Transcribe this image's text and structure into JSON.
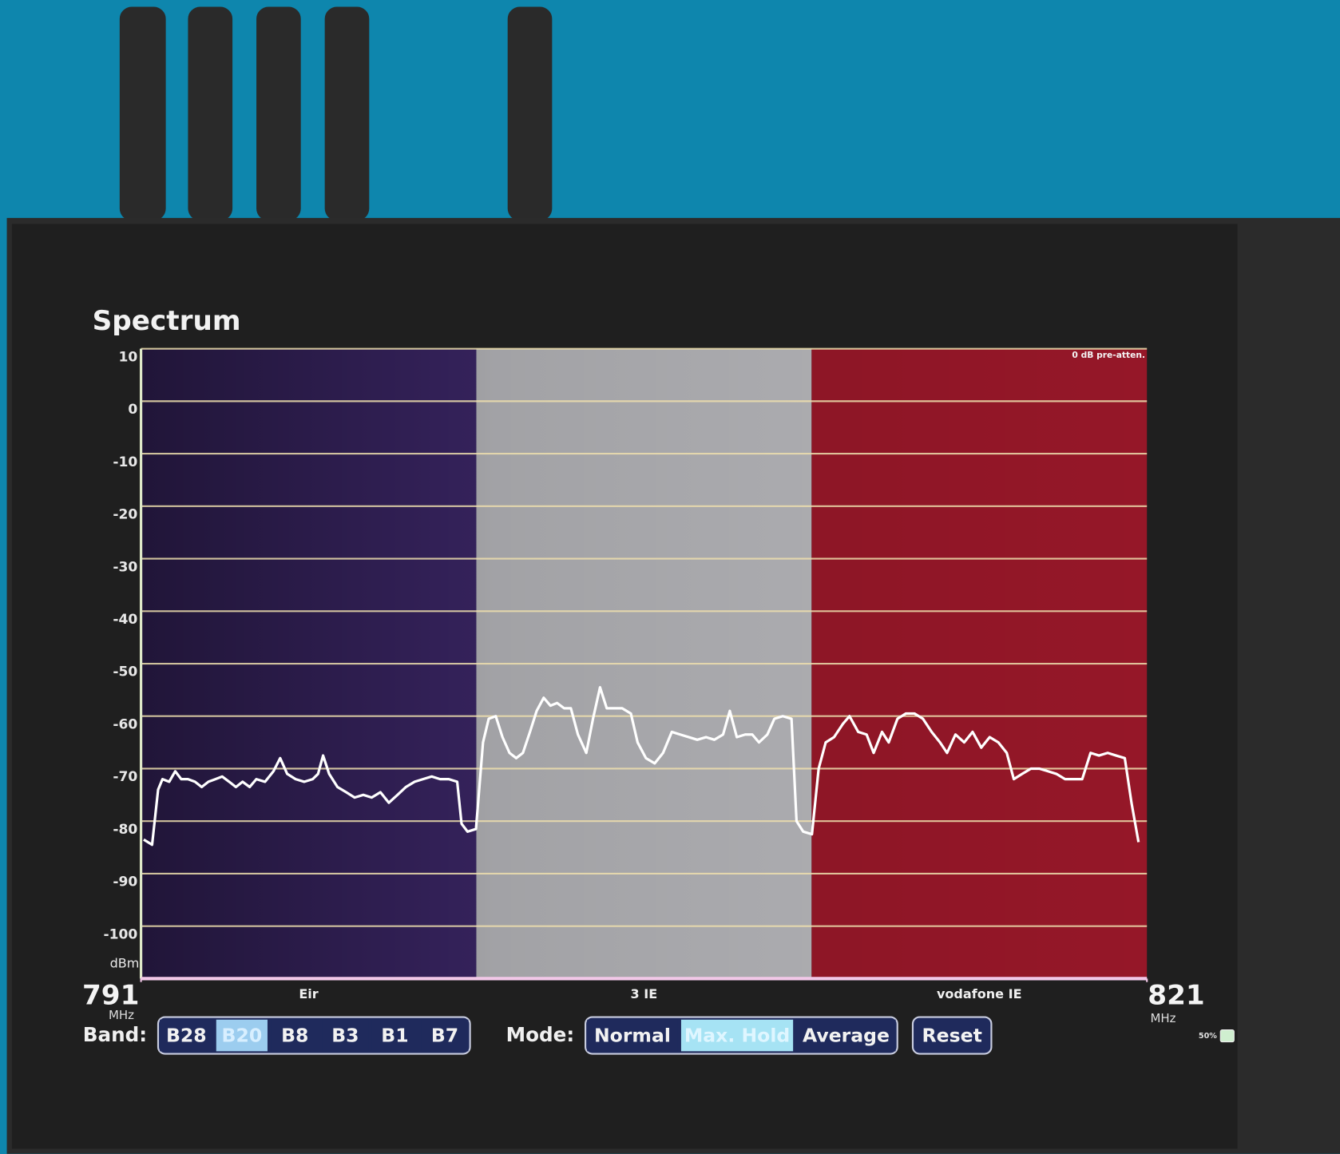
{
  "chart_data": {
    "type": "line",
    "title": "Spectrum",
    "annotation": "0 dB pre-atten.",
    "y_unit": "dBm",
    "x_unit": "MHz",
    "xlim": [
      791,
      821
    ],
    "xticks": [
      791,
      821
    ],
    "ylim": [
      -110,
      10
    ],
    "yticks": [
      10,
      0,
      -10,
      -20,
      -30,
      -40,
      -50,
      -60,
      -70,
      -80,
      -90,
      -100
    ],
    "grid": true,
    "color": "#ffffff",
    "regions": [
      {
        "name": "Eir",
        "start": 791,
        "end": 801,
        "color": "#3b2666"
      },
      {
        "name": "3 IE",
        "start": 801,
        "end": 811,
        "color": "#b4b4b8"
      },
      {
        "name": "vodafone IE",
        "start": 811,
        "end": 821,
        "color": "#951728"
      }
    ],
    "x": [
      791.08,
      791.33,
      791.51,
      791.64,
      791.84,
      792.02,
      792.2,
      792.4,
      792.61,
      792.81,
      793.01,
      793.22,
      793.42,
      793.63,
      793.83,
      794.03,
      794.24,
      794.44,
      794.7,
      794.95,
      795.15,
      795.36,
      795.61,
      795.87,
      796.12,
      796.28,
      796.43,
      796.61,
      796.86,
      797.12,
      797.37,
      797.63,
      797.88,
      798.14,
      798.39,
      798.65,
      798.9,
      799.16,
      799.41,
      799.67,
      799.92,
      800.18,
      800.43,
      800.56,
      800.74,
      800.99,
      801.2,
      801.37,
      801.58,
      801.78,
      801.99,
      802.19,
      802.39,
      802.6,
      802.8,
      803.01,
      803.21,
      803.41,
      803.62,
      803.82,
      804.03,
      804.28,
      804.48,
      804.69,
      804.89,
      805.1,
      805.35,
      805.61,
      805.81,
      806.06,
      806.32,
      806.57,
      806.83,
      807.08,
      807.34,
      807.59,
      807.85,
      808.1,
      808.36,
      808.56,
      808.77,
      809.02,
      809.23,
      809.43,
      809.68,
      809.89,
      810.14,
      810.4,
      810.55,
      810.75,
      811.01,
      811.21,
      811.42,
      811.67,
      811.93,
      812.13,
      812.39,
      812.64,
      812.85,
      813.1,
      813.3,
      813.56,
      813.81,
      814.07,
      814.32,
      814.58,
      814.83,
      815.04,
      815.29,
      815.55,
      815.8,
      816.06,
      816.31,
      816.57,
      816.82,
      817.03,
      817.28,
      817.54,
      817.79,
      818.05,
      818.3,
      818.56,
      818.81,
      819.07,
      819.32,
      819.57,
      819.83,
      820.08,
      820.34,
      820.54,
      820.75
    ],
    "values": [
      -83.5,
      -84.5,
      -74,
      -72,
      -72.5,
      -70.5,
      -72,
      -72,
      -72.5,
      -73.5,
      -72.5,
      -72,
      -71.5,
      -72.5,
      -73.5,
      -72.5,
      -73.5,
      -72,
      -72.5,
      -70.5,
      -68,
      -71,
      -72,
      -72.5,
      -72,
      -71,
      -67.5,
      -71,
      -73.5,
      -74.5,
      -75.5,
      -75,
      -75.5,
      -74.5,
      -76.5,
      -75,
      -73.5,
      -72.5,
      -72,
      -71.5,
      -72,
      -72,
      -72.5,
      -80.5,
      -82,
      -81.5,
      -65,
      -60.5,
      -60,
      -64,
      -67,
      -68,
      -67,
      -63,
      -59,
      -56.5,
      -58,
      -57.5,
      -58.5,
      -58.5,
      -63.5,
      -67,
      -60.5,
      -54.5,
      -58.5,
      -58.5,
      -58.5,
      -59.5,
      -65,
      -68,
      -69,
      -67,
      -63,
      -63.5,
      -64,
      -64.5,
      -64,
      -64.5,
      -63.5,
      -59,
      -64,
      -63.5,
      -63.5,
      -65,
      -63.5,
      -60.5,
      -60,
      -60.5,
      -80,
      -82,
      -82.5,
      -70,
      -65,
      -64,
      -61.5,
      -60,
      -63,
      -63.5,
      -67,
      -63,
      -65,
      -60.5,
      -59.5,
      -59.5,
      -60.5,
      -63,
      -65,
      -67,
      -63.5,
      -65,
      -63,
      -66,
      -64,
      -65,
      -67,
      -72,
      -71,
      -70,
      -70,
      -70.5,
      -71,
      -72,
      -72,
      -72,
      -67,
      -67.5,
      -67,
      -67.5,
      -68,
      -76.5,
      -84
    ]
  },
  "ui": {
    "bands": {
      "label": "Band:",
      "items": [
        "B28",
        "B20",
        "B8",
        "B3",
        "B1",
        "B7"
      ],
      "selected": "B20"
    },
    "mode": {
      "label": "Mode:",
      "items": [
        "Normal",
        "Max. Hold",
        "Average"
      ],
      "selected": "Max. Hold"
    },
    "reset": "Reset",
    "battery": "50%"
  }
}
